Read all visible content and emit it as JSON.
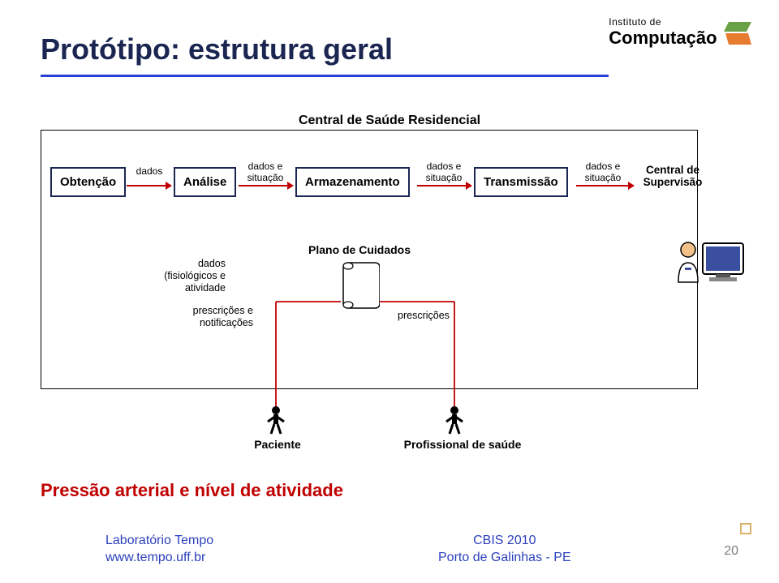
{
  "colors": {
    "title": "#1a2551",
    "rule": "#2a3fd6",
    "node_border": "#1a2551",
    "arrow": "#c00000",
    "red_text": "#c00000",
    "footer_blue": "#2a3fbb",
    "black": "#000000",
    "logo_orange": "#e77b2f",
    "logo_green": "#6aa046",
    "page_gray": "#7a7a7a",
    "corner": "#d9b26b"
  },
  "title": {
    "text": "Protótipo: estrutura geral",
    "fontsize": 36
  },
  "logo": {
    "inst": "Instituto de",
    "comp": "Computação"
  },
  "central_label": "Central de Saúde Residencial",
  "pipeline": {
    "nodes": [
      {
        "id": "obtencao",
        "label": "Obtenção"
      },
      {
        "id": "analise",
        "label": "Análise"
      },
      {
        "id": "armazenamento",
        "label": "Armazenamento"
      },
      {
        "id": "transmissao",
        "label": "Transmissão"
      }
    ],
    "edges": [
      {
        "label": "dados"
      },
      {
        "label": "dados e\nsituação"
      },
      {
        "label": "dados e\nsituação"
      },
      {
        "label": "dados e\nsituação"
      }
    ],
    "end_label": "Central de\nSupervisão"
  },
  "plano_label": "Plano de Cuidados",
  "dados_fisio_label": "dados\n(fisiológicos e\natividade",
  "presc_notif_label": "prescrições e\nnotificações",
  "prescricoes_label": "prescrições",
  "actor_patient": "Paciente",
  "actor_prof": "Profissional de saúde",
  "bottom_red": "Pressão arterial e nível de atividade",
  "footer": {
    "lab": "Laboratório Tempo",
    "url": "www.tempo.uff.br",
    "conf": "CBIS 2010",
    "loc": "Porto de Galinhas - PE"
  },
  "page_num": "20"
}
